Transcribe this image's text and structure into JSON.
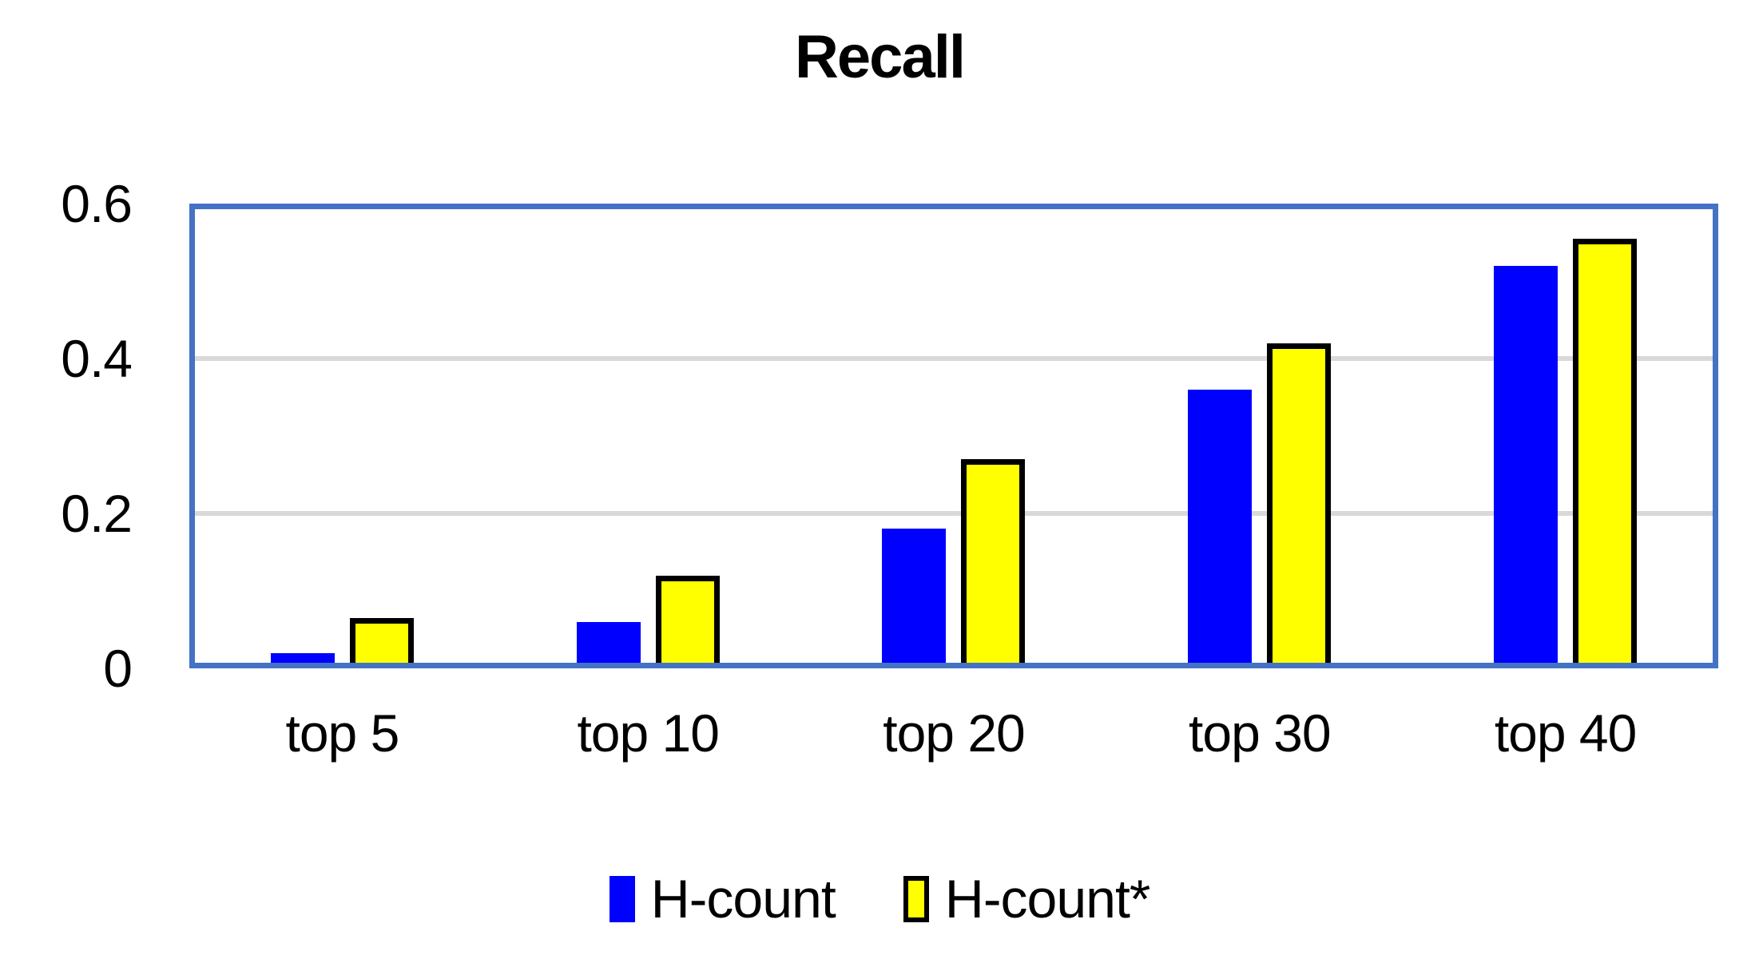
{
  "chart_data": {
    "type": "bar",
    "title": "Recall",
    "categories": [
      "top 5",
      "top 10",
      "top 20",
      "top 30",
      "top 40"
    ],
    "series": [
      {
        "name": "H-count",
        "color": "#0000FF",
        "border_color": null,
        "values": [
          0.02,
          0.06,
          0.18,
          0.36,
          0.52
        ]
      },
      {
        "name": "H-count*",
        "color": "#FFFF00",
        "border_color": "#000000",
        "values": [
          0.065,
          0.12,
          0.27,
          0.42,
          0.555
        ]
      }
    ],
    "xlabel": "",
    "ylabel": "",
    "ylim": [
      0,
      0.6
    ],
    "ytick_labels": [
      "0.6",
      "0.4",
      "0.2",
      "0"
    ],
    "grid": "horizontal",
    "legend_position": "bottom",
    "colors": {
      "frame": "#4472C4",
      "gridline": "#D9D9D9",
      "text": "#000000",
      "background": "#FFFFFF"
    }
  }
}
